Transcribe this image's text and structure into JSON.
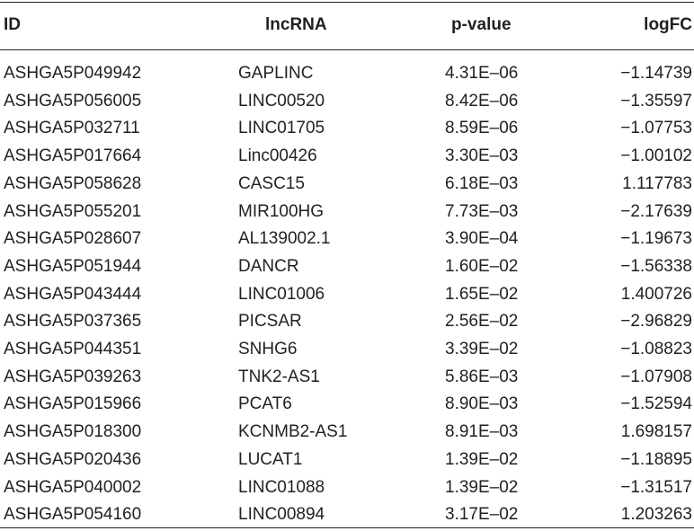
{
  "table": {
    "headers": [
      "ID",
      "lncRNA",
      "p-value",
      "logFC"
    ],
    "rows": [
      [
        "ASHGA5P049942",
        "GAPLINC",
        "4.31E–06",
        "−1.14739"
      ],
      [
        "ASHGA5P056005",
        "LINC00520",
        "8.42E–06",
        "−1.35597"
      ],
      [
        "ASHGA5P032711",
        "LINC01705",
        "8.59E–06",
        "−1.07753"
      ],
      [
        "ASHGA5P017664",
        "Linc00426",
        "3.30E–03",
        "−1.00102"
      ],
      [
        "ASHGA5P058628",
        "CASC15",
        "6.18E–03",
        "1.117783"
      ],
      [
        "ASHGA5P055201",
        "MIR100HG",
        "7.73E–03",
        "−2.17639"
      ],
      [
        "ASHGA5P028607",
        "AL139002.1",
        "3.90E–04",
        "−1.19673"
      ],
      [
        "ASHGA5P051944",
        "DANCR",
        "1.60E–02",
        "−1.56338"
      ],
      [
        "ASHGA5P043444",
        "LINC01006",
        "1.65E–02",
        "1.400726"
      ],
      [
        "ASHGA5P037365",
        "PICSAR",
        "2.56E–02",
        "−2.96829"
      ],
      [
        "ASHGA5P044351",
        "SNHG6",
        "3.39E–02",
        "−1.08823"
      ],
      [
        "ASHGA5P039263",
        "TNK2-AS1",
        "5.86E–03",
        "−1.07908"
      ],
      [
        "ASHGA5P015966",
        "PCAT6",
        "8.90E–03",
        "−1.52594"
      ],
      [
        "ASHGA5P018300",
        "KCNMB2-AS1",
        "8.91E–03",
        "1.698157"
      ],
      [
        "ASHGA5P020436",
        "LUCAT1",
        "1.39E–02",
        "−1.18895"
      ],
      [
        "ASHGA5P040002",
        "LINC01088",
        "1.39E–02",
        "−1.31517"
      ],
      [
        "ASHGA5P054160",
        "LINC00894",
        "3.17E–02",
        "1.203263"
      ]
    ]
  }
}
